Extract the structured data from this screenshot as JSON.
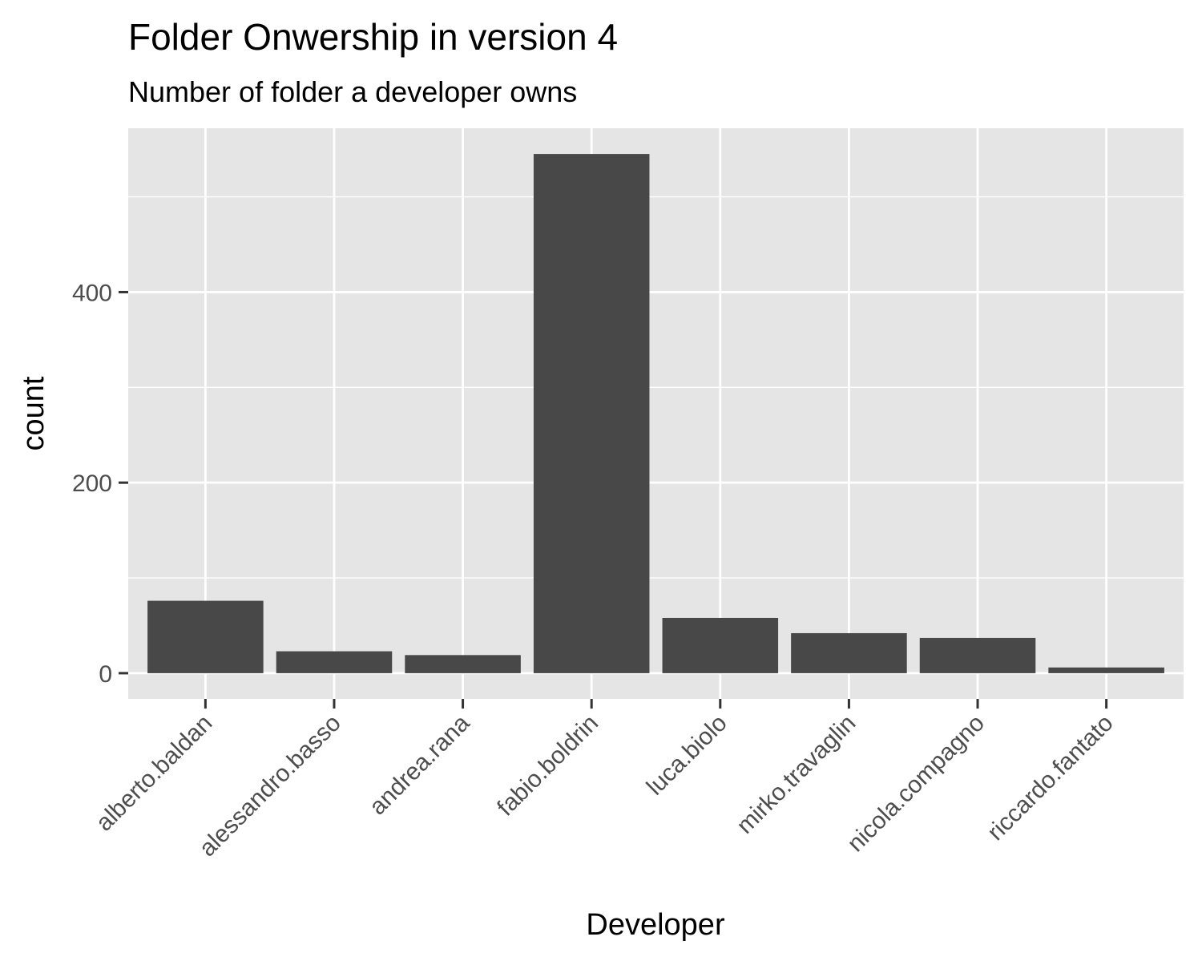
{
  "chart_data": {
    "type": "bar",
    "title": "Folder Onwership in version 4",
    "subtitle": "Number of folder a developer owns",
    "xlabel": "Developer",
    "ylabel": "count",
    "categories": [
      "alberto.baldan",
      "alessandro.basso",
      "andrea.rana",
      "fabio.boldrin",
      "luca.biolo",
      "mirko.travaglin",
      "nicola.compagno",
      "riccardo.fantato"
    ],
    "values": [
      76,
      23,
      19,
      545,
      58,
      42,
      37,
      6
    ],
    "ylim": [
      -27,
      572
    ],
    "yticks": [
      0,
      200,
      400
    ],
    "ytick_labels": [
      "0",
      "200",
      "400"
    ],
    "minor_yticks": [
      100,
      300,
      500
    ],
    "grid": true,
    "colors": {
      "bar": "#484848",
      "panel": "#e5e5e5",
      "grid": "#ffffff",
      "tick": "#333333"
    }
  }
}
